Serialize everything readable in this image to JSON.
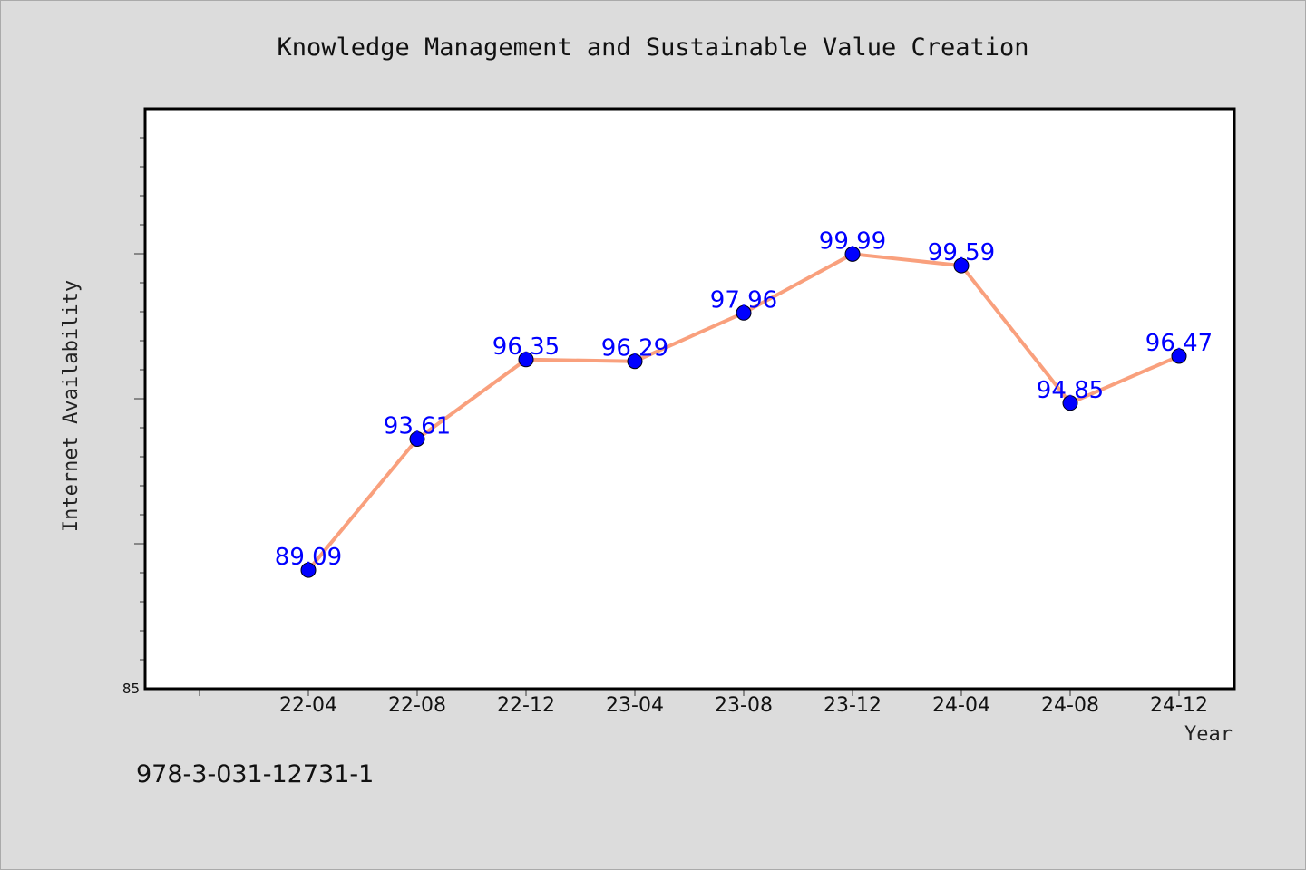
{
  "chart_data": {
    "type": "line",
    "title": "Knowledge Management and Sustainable Value Creation",
    "xlabel": "Year",
    "ylabel": "Internet Availability",
    "categories": [
      "22-04",
      "22-08",
      "22-12",
      "23-04",
      "23-08",
      "23-12",
      "24-04",
      "24-08",
      "24-12"
    ],
    "series": [
      {
        "values": [
          89.09,
          93.61,
          96.35,
          96.29,
          97.96,
          99.99,
          99.59,
          94.85,
          96.47
        ]
      }
    ],
    "data_labels": [
      "89.09",
      "93.61",
      "96.35",
      "96.29",
      "97.96",
      "99.99",
      "99.59",
      "94.85",
      "96.47"
    ],
    "ylim": [
      85,
      105
    ],
    "yticks_labeled": [
      "85"
    ],
    "grid": false,
    "legend": "none",
    "colors": {
      "line": "#f9a07d",
      "marker": "#0000ff",
      "data_label": "#0000ff",
      "plot_bg": "#ffffff",
      "page_bg": "#dcdcdc"
    }
  },
  "footnote": "978-3-031-12731-1"
}
